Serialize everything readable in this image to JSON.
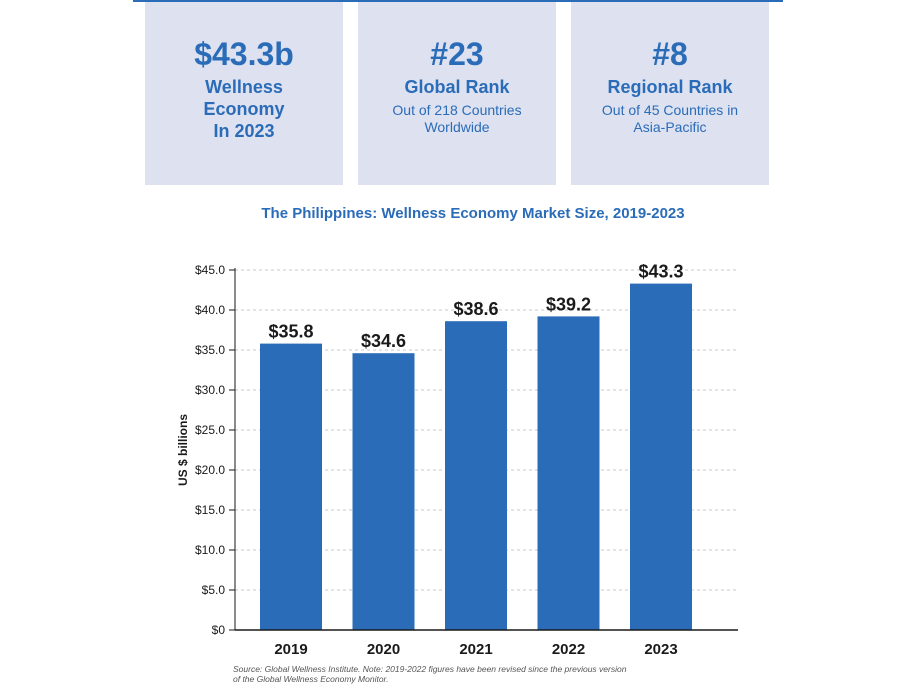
{
  "colors": {
    "accent": "#2b6cb8",
    "card_bg": "#dde1f0",
    "bar": "#2b6cb8",
    "text_dark": "#1a1a1a",
    "grid": "#c8c8c8"
  },
  "cards": [
    {
      "big": "$43.3b",
      "label_lines": [
        "Wellness",
        "Economy",
        "In 2023"
      ],
      "sub_lines": []
    },
    {
      "big": "#23",
      "label_lines": [
        "Global Rank"
      ],
      "sub_lines": [
        "Out of 218 Countries",
        "Worldwide"
      ]
    },
    {
      "big": "#8",
      "label_lines": [
        "Regional Rank"
      ],
      "sub_lines": [
        "Out of 45 Countries in",
        "Asia-Pacific"
      ]
    }
  ],
  "chart_data": {
    "type": "bar",
    "title": "The Philippines: Wellness Economy Market Size, 2019-2023",
    "categories": [
      "2019",
      "2020",
      "2021",
      "2022",
      "2023"
    ],
    "values": [
      35.8,
      34.6,
      38.6,
      39.2,
      43.3
    ],
    "data_labels": [
      "$35.8",
      "$34.6",
      "$38.6",
      "$39.2",
      "$43.3"
    ],
    "xlabel": "",
    "ylabel": "US $ billions",
    "ylim": [
      0,
      45
    ],
    "yticks": [
      0,
      5,
      10,
      15,
      20,
      25,
      30,
      35,
      40,
      45
    ],
    "ytick_labels": [
      "$0",
      "$5.0",
      "$10.0",
      "$15.0",
      "$20.0",
      "$25.0",
      "$30.0",
      "$35.0",
      "$40.0",
      "$45.0"
    ],
    "grid": true,
    "legend": "none"
  },
  "source_lines": [
    "Source: Global Wellness Institute. Note: 2019-2022 figures have been revised since the previous version",
    "of the Global Wellness Economy Monitor."
  ]
}
